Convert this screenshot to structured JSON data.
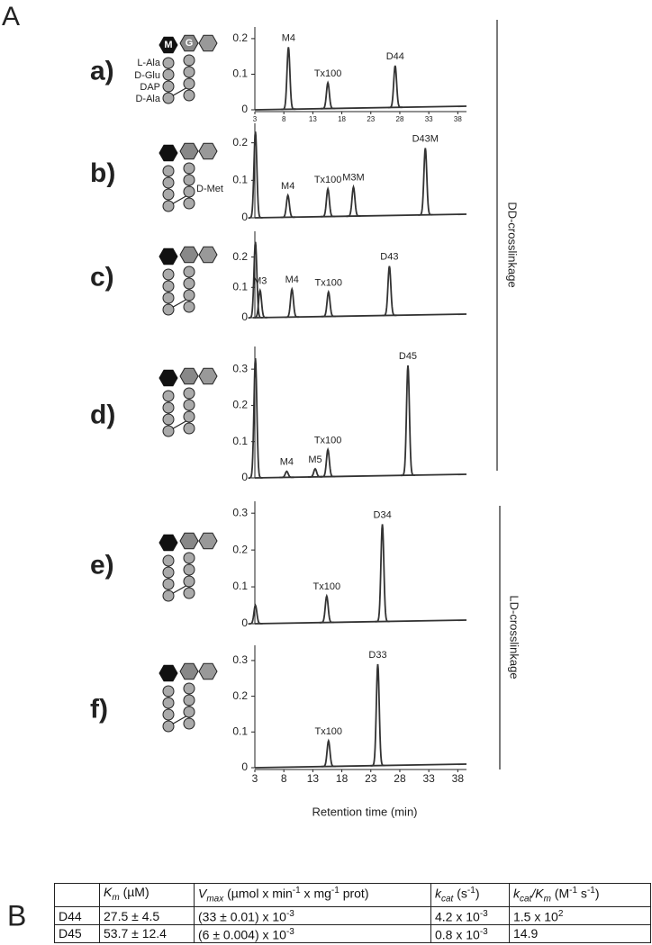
{
  "figure": {
    "panel_labels": [
      "A",
      "B"
    ],
    "x_label": "Retention time (min)",
    "groups": [
      "DD-crosslinkage",
      "LD-crosslinkage"
    ]
  },
  "chart_data": [
    {
      "type": "chromatogram",
      "label": "a)",
      "annotations": [
        "M",
        "G",
        "L-Ala",
        "D-Glu",
        "DAP",
        "D-Ala"
      ],
      "color": "#333333",
      "xlim": [
        3,
        39.5
      ],
      "xticks": [
        3,
        8,
        13,
        18,
        23,
        28,
        33,
        38
      ],
      "ylim": [
        0,
        0.22
      ],
      "yticks": [
        0,
        0.1,
        0.2
      ],
      "peaks": {
        "x": [
          8.8,
          15.6,
          27.2
        ],
        "values": [
          0.176,
          0.076,
          0.124
        ],
        "labels": [
          "M4",
          "Tx100",
          "D44"
        ]
      }
    },
    {
      "type": "chromatogram",
      "label": "b)",
      "annotations": [
        "D-Met"
      ],
      "color": "#333333",
      "xlim": [
        3,
        39.5
      ],
      "ylim": [
        0,
        0.24
      ],
      "yticks": [
        0,
        0.1,
        0.2
      ],
      "peaks": {
        "x": [
          3.1,
          8.7,
          15.6,
          20,
          32.4
        ],
        "values": [
          0.23,
          0.06,
          0.077,
          0.082,
          0.186
        ],
        "labels": [
          null,
          "M4",
          "Tx100",
          "M3M",
          "D43M"
        ]
      }
    },
    {
      "type": "chromatogram",
      "label": "c)",
      "color": "#333333",
      "xlim": [
        3,
        39.5
      ],
      "ylim": [
        0,
        0.27
      ],
      "yticks": [
        0,
        0.1,
        0.2
      ],
      "peaks": {
        "x": [
          3.1,
          3.9,
          9.4,
          15.7,
          26.2
        ],
        "values": [
          0.25,
          0.09,
          0.094,
          0.085,
          0.17
        ],
        "labels": [
          null,
          "M3",
          "M4",
          "Tx100",
          "D43"
        ]
      }
    },
    {
      "type": "chromatogram",
      "label": "d)",
      "color": "#333333",
      "xlim": [
        3,
        39.5
      ],
      "ylim": [
        0,
        0.35
      ],
      "yticks": [
        0,
        0.1,
        0.2,
        0.3
      ],
      "peaks": {
        "x": [
          3.1,
          8.5,
          13.4,
          15.6,
          29.4
        ],
        "values": [
          0.33,
          0.018,
          0.025,
          0.078,
          0.31
        ],
        "labels": [
          null,
          "M4",
          "M5",
          "Tx100",
          "D45"
        ]
      }
    },
    {
      "type": "chromatogram",
      "label": "e)",
      "color": "#333333",
      "xlim": [
        3,
        39.5
      ],
      "ylim": [
        0,
        0.32
      ],
      "yticks": [
        0,
        0.1,
        0.2,
        0.3
      ],
      "peaks": {
        "x": [
          3.1,
          15.4,
          25
        ],
        "values": [
          0.05,
          0.075,
          0.27
        ],
        "labels": [
          null,
          "Tx100",
          "D34"
        ]
      }
    },
    {
      "type": "chromatogram",
      "label": "f)",
      "color": "#333333",
      "xlim": [
        3,
        39.5
      ],
      "xticks": [
        3,
        8,
        13,
        18,
        23,
        28,
        33,
        38
      ],
      "ylim": [
        0,
        0.33
      ],
      "yticks": [
        0,
        0.1,
        0.2,
        0.3
      ],
      "peaks": {
        "x": [
          15.7,
          24.2
        ],
        "values": [
          0.075,
          0.29
        ],
        "labels": [
          "Tx100",
          "D33"
        ]
      }
    }
  ],
  "table": {
    "header": [
      [],
      [
        {
          "text": "K",
          "style": "i"
        },
        {
          "text": "m",
          "style": "isub"
        },
        {
          "text": " (µM)"
        }
      ],
      [
        {
          "text": "V",
          "style": "i"
        },
        {
          "text": "max",
          "style": "isub"
        },
        {
          "text": " (µmol x min"
        },
        {
          "text": "-1",
          "style": "sup"
        },
        {
          "text": " x mg"
        },
        {
          "text": "-1",
          "style": "sup"
        },
        {
          "text": "  prot)"
        }
      ],
      [
        {
          "text": "k",
          "style": "i"
        },
        {
          "text": "cat",
          "style": "isub"
        },
        {
          "text": " (s"
        },
        {
          "text": "-1",
          "style": "sup"
        },
        {
          "text": ")"
        }
      ],
      [
        {
          "text": "k",
          "style": "i"
        },
        {
          "text": "cat",
          "style": "isub"
        },
        {
          "text": "/K",
          "style": "i"
        },
        {
          "text": "m",
          "style": "isub"
        },
        {
          "text": " (M"
        },
        {
          "text": "-1",
          "style": "sup"
        },
        {
          "text": " s"
        },
        {
          "text": "-1",
          "style": "sup"
        },
        {
          "text": ")"
        }
      ]
    ],
    "rows": [
      [
        [
          {
            "text": "D44"
          }
        ],
        [
          {
            "text": "27.5 ± 4.5"
          }
        ],
        [
          {
            "text": "(33 ± 0.01) x 10"
          },
          {
            "text": "-3",
            "style": "sup"
          }
        ],
        [
          {
            "text": "4.2 x 10"
          },
          {
            "text": "-3",
            "style": "sup"
          }
        ],
        [
          {
            "text": "1.5 x 10"
          },
          {
            "text": "2",
            "style": "sup"
          }
        ]
      ],
      [
        [
          {
            "text": "D45"
          }
        ],
        [
          {
            "text": "53.7 ± 12.4"
          }
        ],
        [
          {
            "text": "(6 ± 0.004) x 10"
          },
          {
            "text": "-3",
            "style": "sup"
          }
        ],
        [
          {
            "text": "0.8 x 10"
          },
          {
            "text": "-3",
            "style": "sup"
          }
        ],
        [
          {
            "text": "14.9"
          }
        ]
      ]
    ]
  }
}
